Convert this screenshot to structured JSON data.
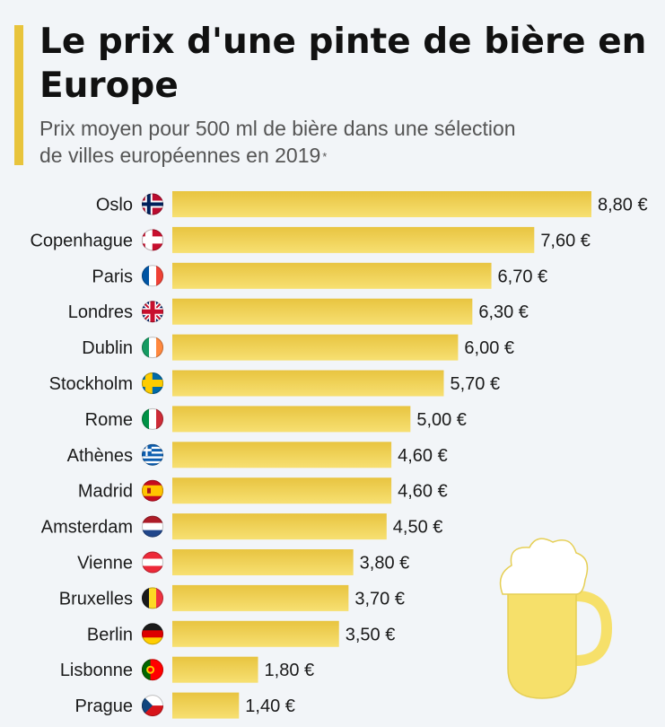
{
  "title": "Le prix d'une pinte de bière en Europe",
  "subtitle": "Prix moyen pour 500 ml de bière dans une sélection de villes européennes en 2019",
  "footnote_marker": "*",
  "colors": {
    "accent": "#e8c43c",
    "bar_top": "#e8c440",
    "bar_bottom": "#f7e072",
    "mug": "#f6e06a"
  },
  "chart_data": {
    "type": "bar",
    "orientation": "horizontal",
    "categories": [
      "Oslo",
      "Copenhague",
      "Paris",
      "Londres",
      "Dublin",
      "Stockholm",
      "Rome",
      "Athènes",
      "Madrid",
      "Amsterdam",
      "Vienne",
      "Bruxelles",
      "Berlin",
      "Lisbonne",
      "Prague"
    ],
    "values": [
      8.8,
      7.6,
      6.7,
      6.3,
      6.0,
      5.7,
      5.0,
      4.6,
      4.6,
      4.5,
      3.8,
      3.7,
      3.5,
      1.8,
      1.4
    ],
    "value_labels": [
      "8,80 €",
      "7,60 €",
      "6,70 €",
      "6,30 €",
      "6,00 €",
      "5,70 €",
      "5,00 €",
      "4,60 €",
      "4,60 €",
      "4,50 €",
      "3,80 €",
      "3,70 €",
      "3,50 €",
      "1,80 €",
      "1,40 €"
    ],
    "flags": [
      "norway-flag-icon",
      "denmark-flag-icon",
      "france-flag-icon",
      "uk-flag-icon",
      "ireland-flag-icon",
      "sweden-flag-icon",
      "italy-flag-icon",
      "greece-flag-icon",
      "spain-flag-icon",
      "netherlands-flag-icon",
      "austria-flag-icon",
      "belgium-flag-icon",
      "germany-flag-icon",
      "portugal-flag-icon",
      "czech-flag-icon"
    ],
    "xlim": [
      0,
      8.8
    ],
    "grid": false,
    "legend": "none"
  }
}
